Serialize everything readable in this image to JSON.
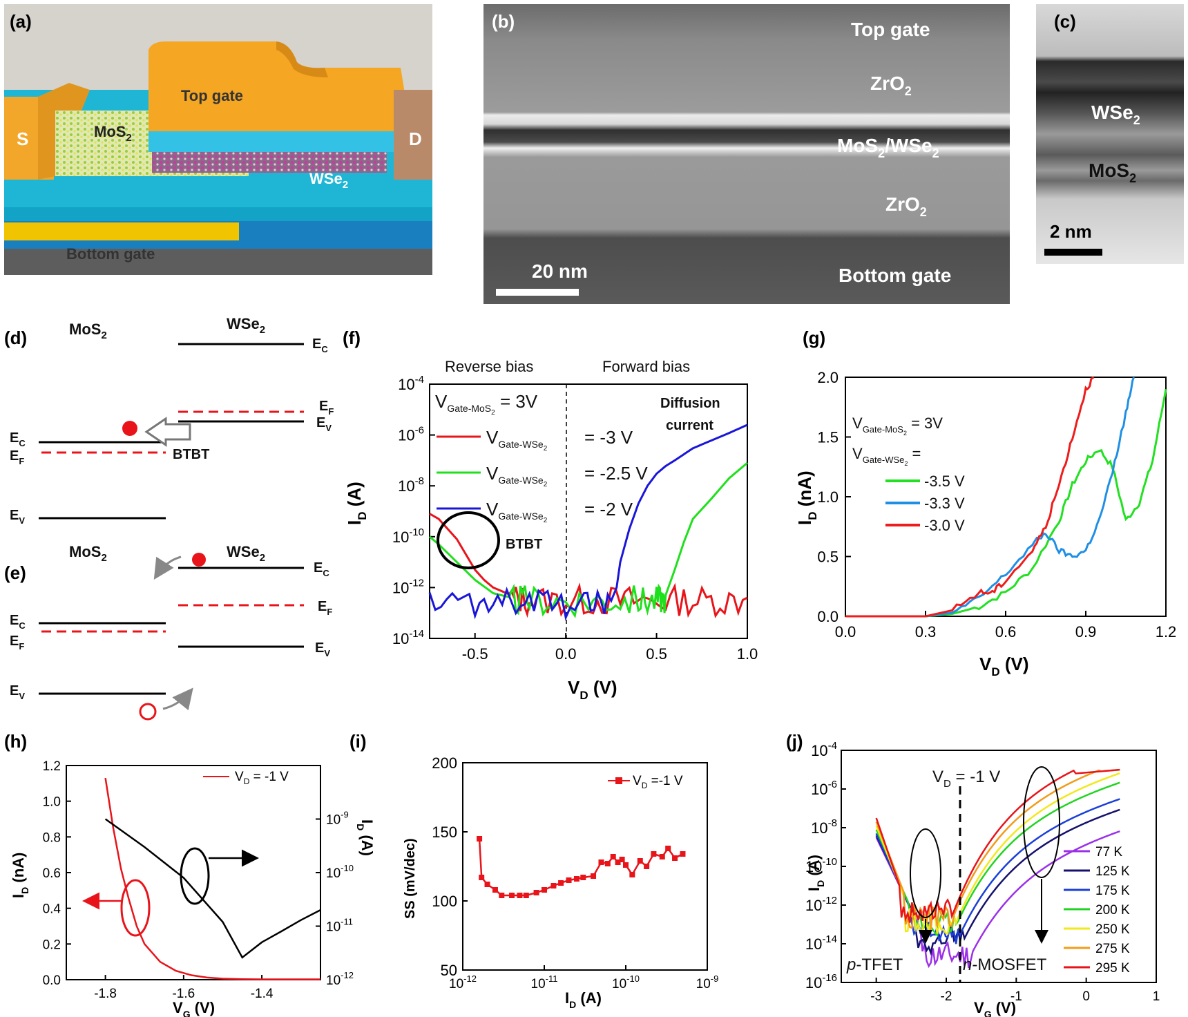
{
  "panels": {
    "a": {
      "label": "(a)",
      "s": "S",
      "d": "D",
      "top_gate": "Top gate",
      "mos2": "MoS",
      "mos2_sub": "2",
      "wse2": "WSe",
      "wse2_sub": "2",
      "bottom_gate": "Bottom gate"
    },
    "b": {
      "label": "(b)",
      "top_gate": "Top gate",
      "zro2_top": "ZrO",
      "zro2_sub": "2",
      "stack": "MoS",
      "stack_mid": "/WSe",
      "stack_sub": "2",
      "zro2_bot": "ZrO",
      "bottom_gate": "Bottom gate",
      "scale": "20 nm"
    },
    "c": {
      "label": "(c)",
      "wse2": "WSe",
      "mos2": "MoS",
      "sub": "2",
      "scale": "2 nm"
    },
    "d": {
      "label": "(d)",
      "left": "MoS",
      "right": "WSe",
      "sub": "2",
      "ec": "E",
      "ec_sub": "C",
      "ef_sub": "F",
      "ev_sub": "V",
      "btbt": "BTBT"
    },
    "e": {
      "label": "(e)",
      "left": "MoS",
      "right": "WSe",
      "sub": "2"
    },
    "f": {
      "label": "(f)",
      "reverse": "Reverse bias",
      "forward": "Forward bias",
      "gate_mos2": "V",
      "gate_mos2_sub": "Gate-MoS",
      "gate_mos2_sub2": "2",
      "gate_mos2_val": " = 3V",
      "gate_wse2_sub": "Gate-WSe",
      "diffusion1": "Diffusion",
      "diffusion2": "current",
      "btbt": "BTBT",
      "ylabel": "I",
      "ylabel_sub": "D",
      "ylabel_unit": " (A)",
      "xlabel": "V",
      "xlabel_sub": "D",
      "xlabel_unit": " (V)",
      "legend": [
        "= -3 V",
        "= -2.5 V",
        "= -2 V"
      ]
    },
    "g": {
      "label": "(g)",
      "line1": "V",
      "line1_sub": "Gate-MoS",
      "line1_sub2": "2",
      "line1_val": " = 3V",
      "line2_sub": "Gate-WSe",
      "line2_val": " =",
      "ylabel": "I",
      "ylabel_sub": "D",
      "ylabel_unit": " (nA)",
      "xlabel": "V",
      "xlabel_sub": "D",
      "xlabel_unit": " (V)",
      "legend": [
        "-3.5 V",
        "-3.3 V",
        "-3.0 V"
      ]
    },
    "h": {
      "label": "(h)",
      "legend": "V",
      "legend_sub": "D",
      "legend_val": " = -1 V",
      "ylabel_left": "I",
      "ylabel_left_sub": "D",
      "ylabel_left_unit": " (nA)",
      "ylabel_right": "I",
      "ylabel_right_sub": "D",
      "ylabel_right_unit": " (A)",
      "xlabel": "V",
      "xlabel_sub": "G",
      "xlabel_unit": " (V)"
    },
    "i": {
      "label": "(i)",
      "legend": "V",
      "legend_sub": "D",
      "legend_val": " =-1 V",
      "ylabel": "SS (mV/dec)",
      "xlabel": "I",
      "xlabel_sub": "D",
      "xlabel_unit": " (A)"
    },
    "j": {
      "label": "(j)",
      "vd": "V",
      "vd_sub": "D",
      "vd_val": " = -1 V",
      "ptfet_p": "p",
      "ptfet": "-TFET",
      "nmos_n": "n",
      "nmos": "-MOSFET",
      "ylabel": "I",
      "ylabel_sub": "D",
      "ylabel_unit": " (A)",
      "xlabel": "V",
      "xlabel_sub": "G",
      "xlabel_unit": " (V)"
    }
  },
  "chart_data": [
    {
      "panel": "f",
      "type": "line",
      "xlim": [
        -0.75,
        1.0
      ],
      "ylim": [
        1e-14,
        0.0001
      ],
      "yscale": "log",
      "xticks": [
        "-0.5",
        "0.0",
        "0.5",
        "1.0"
      ],
      "series": [
        {
          "name": "V_Gate-WSe2 = -3 V",
          "color": "#e8141a",
          "x": [
            -0.75,
            -0.7,
            -0.65,
            -0.6,
            -0.55,
            -0.5,
            -0.45,
            -0.4,
            -0.3,
            -0.2,
            0,
            0.2,
            0.4,
            0.6,
            0.8,
            1.0
          ],
          "y": [
            8e-10,
            5e-10,
            2e-10,
            8e-11,
            2e-11,
            5e-12,
            2e-12,
            1e-12,
            5e-13,
            4e-13,
            4e-13,
            4e-13,
            4e-13,
            4e-13,
            4e-13,
            4e-13
          ]
        },
        {
          "name": "V_Gate-WSe2 = -2.5 V",
          "color": "#1fe01c",
          "x": [
            -0.75,
            -0.7,
            -0.6,
            -0.5,
            -0.4,
            -0.3,
            -0.2,
            0,
            0.2,
            0.4,
            0.5,
            0.55,
            0.6,
            0.65,
            0.7,
            0.8,
            0.9,
            1.0
          ],
          "y": [
            1e-10,
            5e-11,
            1e-11,
            2e-12,
            6e-13,
            4e-13,
            4e-13,
            4e-13,
            4e-13,
            4e-13,
            4e-13,
            5e-13,
            5e-12,
            6e-11,
            5e-10,
            3e-09,
            2e-08,
            8e-08
          ]
        },
        {
          "name": "V_Gate-WSe2 = -2 V",
          "color": "#1a16d9",
          "x": [
            -0.75,
            -0.5,
            -0.3,
            -0.1,
            0.1,
            0.25,
            0.28,
            0.3,
            0.35,
            0.4,
            0.45,
            0.5,
            0.55,
            0.6,
            0.7,
            0.8,
            0.9,
            1.0
          ],
          "y": [
            3e-13,
            3e-13,
            3e-13,
            3e-13,
            3e-13,
            3e-13,
            1e-12,
            1e-11,
            2e-10,
            2e-09,
            1e-08,
            3e-08,
            6e-08,
            1e-07,
            3e-07,
            6e-07,
            1.2e-06,
            2.5e-06
          ]
        }
      ]
    },
    {
      "panel": "g",
      "type": "line",
      "xlim": [
        0,
        1.2
      ],
      "ylim": [
        0,
        2.0
      ],
      "xticks": [
        "0.0",
        "0.3",
        "0.6",
        "0.9",
        "1.2"
      ],
      "yticks": [
        "0.0",
        "0.5",
        "1.0",
        "1.5",
        "2.0"
      ],
      "series": [
        {
          "name": "-3.5 V",
          "color": "#22e022",
          "x": [
            0,
            0.3,
            0.4,
            0.5,
            0.6,
            0.7,
            0.8,
            0.85,
            0.9,
            0.95,
            1.0,
            1.05,
            1.1,
            1.15,
            1.2
          ],
          "y": [
            0,
            0,
            0.02,
            0.08,
            0.2,
            0.4,
            0.8,
            1.1,
            1.3,
            1.4,
            1.25,
            0.8,
            0.95,
            1.3,
            1.9
          ]
        },
        {
          "name": "-3.3 V",
          "color": "#1f8fe6",
          "x": [
            0,
            0.3,
            0.4,
            0.5,
            0.6,
            0.7,
            0.75,
            0.8,
            0.85,
            0.9,
            0.95,
            1.0,
            1.05,
            1.08
          ],
          "y": [
            0,
            0,
            0.03,
            0.15,
            0.35,
            0.6,
            0.7,
            0.55,
            0.5,
            0.55,
            0.8,
            1.2,
            1.7,
            2.0
          ]
        },
        {
          "name": "-3.0 V",
          "color": "#ee1c1c",
          "x": [
            0,
            0.3,
            0.4,
            0.5,
            0.55,
            0.6,
            0.7,
            0.75,
            0.8,
            0.85,
            0.9,
            0.93
          ],
          "y": [
            0,
            0,
            0.05,
            0.2,
            0.2,
            0.3,
            0.55,
            0.75,
            1.1,
            1.5,
            1.9,
            2.0
          ]
        }
      ]
    },
    {
      "panel": "h",
      "type": "line",
      "xlim": [
        -1.9,
        -1.25
      ],
      "ylim_left": [
        0,
        1.2
      ],
      "ylim_right": [
        1e-12,
        1e-08
      ],
      "yscale_right": "log",
      "xticks": [
        "-1.8",
        "-1.6",
        "-1.4"
      ],
      "yticks_left": [
        "0.0",
        "0.2",
        "0.4",
        "0.6",
        "0.8",
        "1.0",
        "1.2"
      ],
      "series": [
        {
          "name": "V_D = -1 V",
          "color": "#e8141a",
          "axis": "left",
          "x": [
            -1.8,
            -1.78,
            -1.76,
            -1.74,
            -1.72,
            -1.7,
            -1.66,
            -1.62,
            -1.58,
            -1.54,
            -1.5,
            -1.45,
            -1.4,
            -1.25
          ],
          "y": [
            1.13,
            0.85,
            0.62,
            0.45,
            0.3,
            0.2,
            0.1,
            0.05,
            0.025,
            0.012,
            0.006,
            0.003,
            0.002,
            0.002
          ]
        },
        {
          "color": "#000000",
          "axis": "right",
          "x": [
            -1.8,
            -1.7,
            -1.6,
            -1.5,
            -1.45,
            -1.4,
            -1.35,
            -1.3,
            -1.25
          ],
          "y": [
            1e-09,
            3e-10,
            8e-11,
            1.2e-11,
            2.6e-12,
            5e-12,
            8e-12,
            1.3e-11,
            2e-11
          ]
        }
      ]
    },
    {
      "panel": "i",
      "type": "line",
      "xlim": [
        1e-12,
        1e-09
      ],
      "ylim": [
        50,
        200
      ],
      "xscale": "log",
      "yticks": [
        "50",
        "100",
        "150",
        "200"
      ],
      "xticks": [
        "10^-12",
        "10^-11",
        "10^-10",
        "10^-9"
      ],
      "series": [
        {
          "name": "V_D =-1 V",
          "color": "#e8141a",
          "x": [
            1.6e-12,
            1.7e-12,
            2e-12,
            2.5e-12,
            3e-12,
            4e-12,
            5e-12,
            6e-12,
            8e-12,
            1e-11,
            1.3e-11,
            1.6e-11,
            2e-11,
            2.5e-11,
            3e-11,
            4e-11,
            5e-11,
            6e-11,
            7e-11,
            8e-11,
            9e-11,
            1e-10,
            1.2e-10,
            1.5e-10,
            1.8e-10,
            2.2e-10,
            2.8e-10,
            3.3e-10,
            4e-10,
            5e-10
          ],
          "y": [
            145,
            117,
            112,
            108,
            104,
            104,
            104,
            104,
            106,
            108,
            111,
            113,
            115,
            116,
            117,
            118,
            128,
            127,
            132,
            128,
            130,
            126,
            119,
            129,
            125,
            134,
            132,
            138,
            131,
            134
          ]
        }
      ]
    },
    {
      "panel": "j",
      "type": "line",
      "xlim": [
        -3.5,
        1.0
      ],
      "ylim": [
        1e-16,
        0.0001
      ],
      "yscale": "log",
      "xticks": [
        "-3",
        "-2",
        "-1",
        "0",
        "1"
      ],
      "series": [
        {
          "name": "77 K",
          "color": "#9b30e8"
        },
        {
          "name": "125 K",
          "color": "#15106e"
        },
        {
          "name": "175 K",
          "color": "#1a3fd9"
        },
        {
          "name": "200 K",
          "color": "#22d422"
        },
        {
          "name": "250 K",
          "color": "#f2e81a"
        },
        {
          "name": "275 K",
          "color": "#f29b1a"
        },
        {
          "name": "295 K",
          "color": "#e8141a"
        }
      ]
    }
  ]
}
